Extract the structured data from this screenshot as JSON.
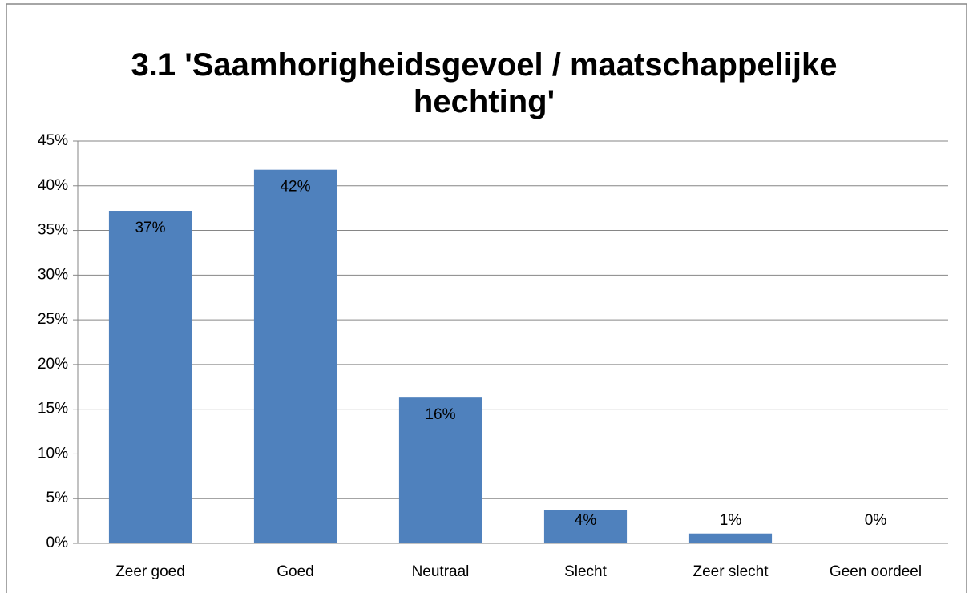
{
  "chart_data": {
    "type": "bar",
    "title": "3.1 'Saamhorigheidsgevoel / maatschappelijke hechting'",
    "categories": [
      "Zeer goed",
      "Goed",
      "Neutraal",
      "Slecht",
      "Zeer slecht",
      "Geen oordeel"
    ],
    "values": [
      37.2,
      41.8,
      16.3,
      3.7,
      1.1,
      0
    ],
    "value_labels": [
      "37%",
      "42%",
      "16%",
      "4%",
      "1%",
      "0%"
    ],
    "color": "#4f81bd",
    "ylim": [
      0,
      45
    ],
    "yticks": [
      {
        "value": 0,
        "label": "0%"
      },
      {
        "value": 5,
        "label": "5%"
      },
      {
        "value": 10,
        "label": "10%"
      },
      {
        "value": 15,
        "label": "15%"
      },
      {
        "value": 20,
        "label": "20%"
      },
      {
        "value": 25,
        "label": "25%"
      },
      {
        "value": 30,
        "label": "30%"
      },
      {
        "value": 35,
        "label": "35%"
      },
      {
        "value": 40,
        "label": "40%"
      },
      {
        "value": 45,
        "label": "45%"
      }
    ],
    "grid": true
  }
}
